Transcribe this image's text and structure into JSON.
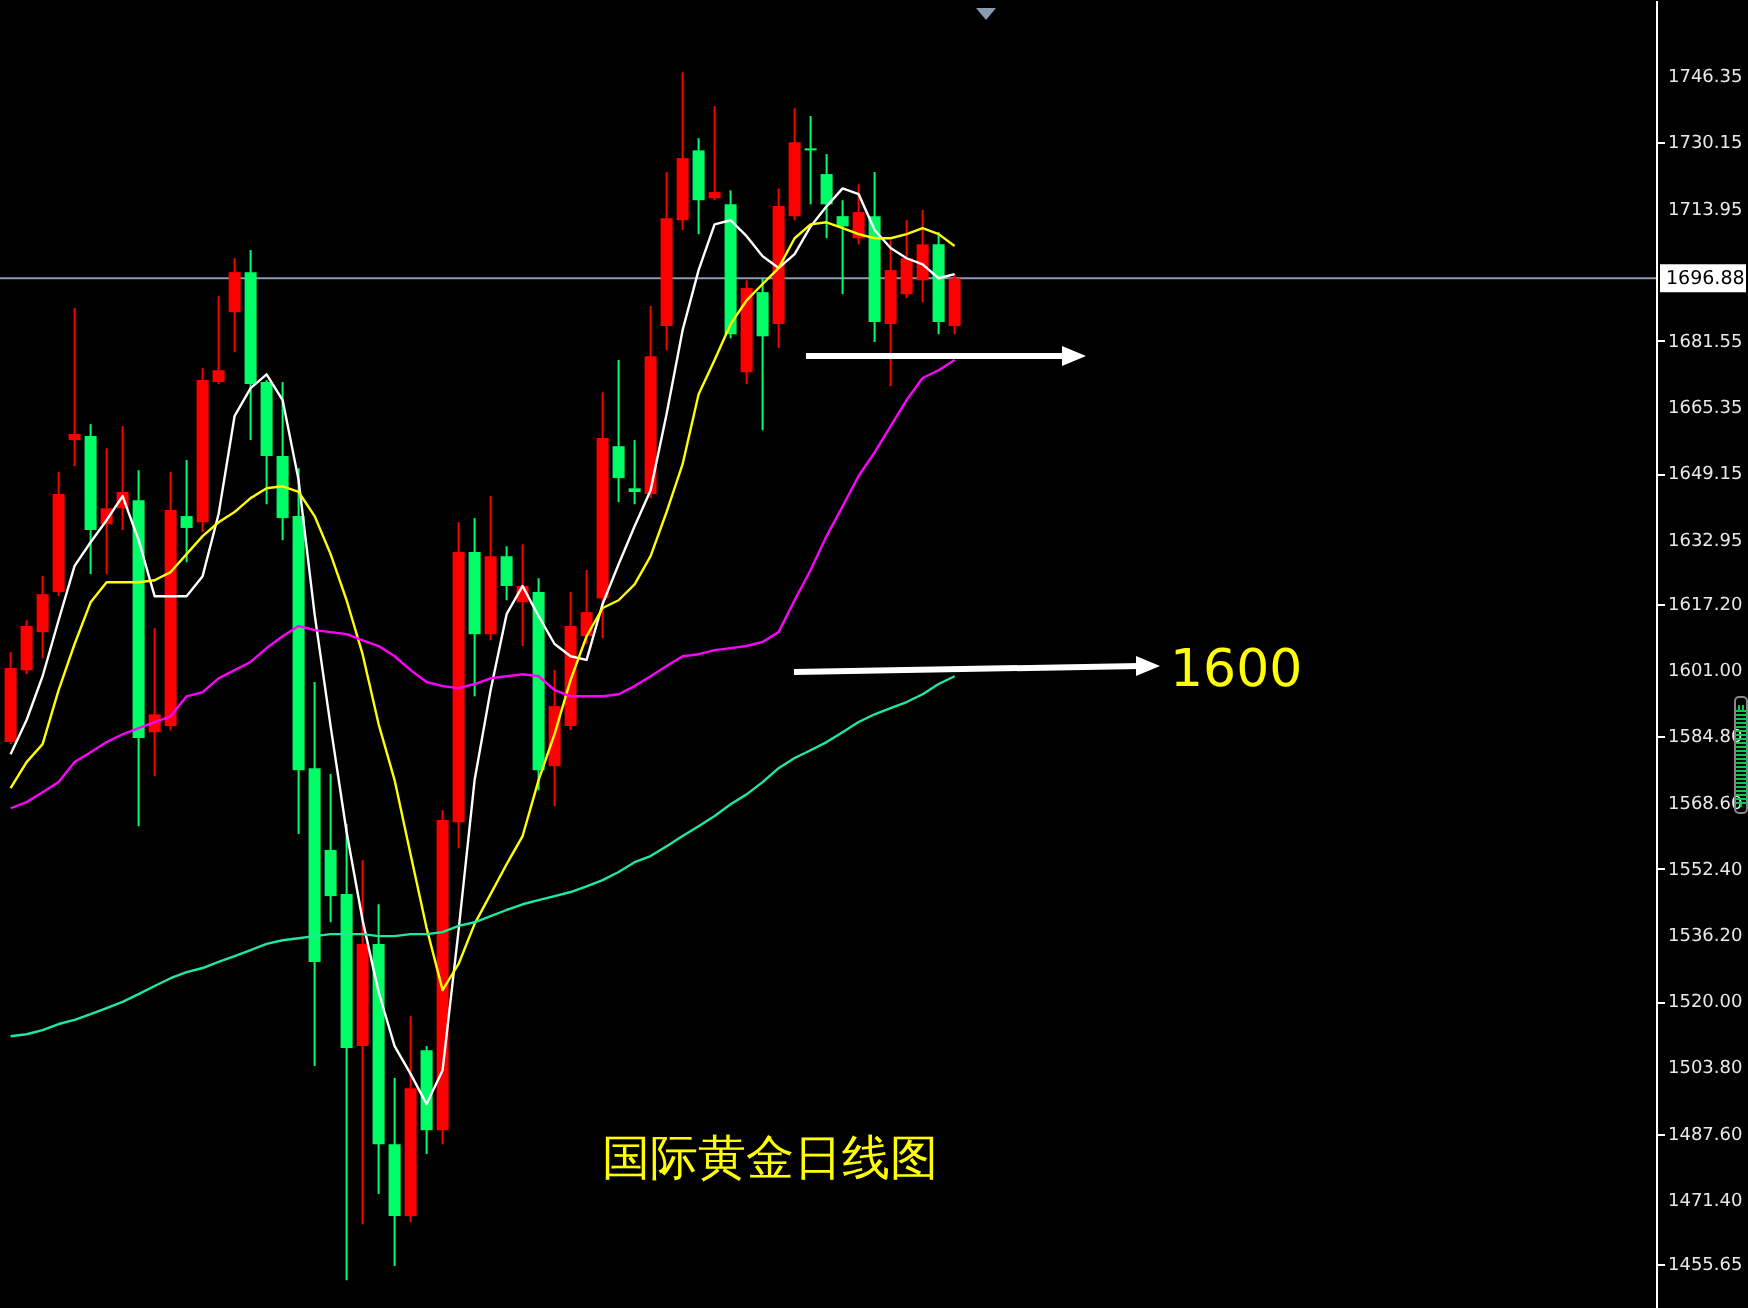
{
  "chart_data": {
    "type": "candlestick",
    "categories": [
      null,
      null,
      null,
      null,
      null,
      null,
      null,
      null,
      null,
      null,
      null,
      null,
      null,
      null,
      null,
      null,
      null,
      null,
      null,
      null,
      null,
      null,
      null,
      null,
      null,
      null,
      null,
      null,
      null,
      null,
      null,
      null,
      null,
      null,
      null,
      null,
      null,
      null,
      null,
      null,
      null,
      null,
      null,
      null,
      null,
      null,
      null,
      null,
      null,
      null,
      null,
      null,
      null,
      null,
      null,
      null,
      null,
      null,
      null,
      null
    ],
    "ohlc": [
      [
        1583.4,
        1605.4,
        1582.9,
        1601.5
      ],
      [
        1601.0,
        1613.2,
        1600.0,
        1611.8
      ],
      [
        1610.3,
        1624.0,
        1603.9,
        1619.6
      ],
      [
        1620.1,
        1649.5,
        1619.1,
        1644.1
      ],
      [
        1657.3,
        1689.6,
        1650.9,
        1658.8
      ],
      [
        1658.3,
        1661.2,
        1624.5,
        1635.3
      ],
      [
        1636.7,
        1655.3,
        1624.5,
        1640.6
      ],
      [
        1640.6,
        1660.7,
        1635.3,
        1644.6
      ],
      [
        1642.6,
        1649.9,
        1562.8,
        1584.4
      ],
      [
        1585.8,
        1611.3,
        1575.1,
        1590.2
      ],
      [
        1587.3,
        1649.5,
        1586.3,
        1640.2
      ],
      [
        1638.7,
        1652.4,
        1627.4,
        1635.8
      ],
      [
        1637.2,
        1674.9,
        1634.8,
        1672.0
      ],
      [
        1671.5,
        1692.5,
        1671.0,
        1674.4
      ],
      [
        1688.6,
        1701.8,
        1678.8,
        1698.4
      ],
      [
        1698.4,
        1703.8,
        1657.3,
        1671.0
      ],
      [
        1671.5,
        1672.0,
        1641.6,
        1653.4
      ],
      [
        1653.4,
        1671.5,
        1632.8,
        1638.2
      ],
      [
        1638.7,
        1650.4,
        1560.9,
        1576.5
      ],
      [
        1577.0,
        1598.1,
        1504.1,
        1529.6
      ],
      [
        1557.0,
        1575.6,
        1539.3,
        1545.7
      ],
      [
        1546.2,
        1563.3,
        1451.7,
        1508.5
      ],
      [
        1509.0,
        1554.5,
        1465.4,
        1534.0
      ],
      [
        1534.0,
        1543.7,
        1472.8,
        1485.0
      ],
      [
        1485.0,
        1501.2,
        1455.2,
        1467.4
      ],
      [
        1467.4,
        1516.3,
        1465.9,
        1498.7
      ],
      [
        1508.0,
        1509.0,
        1482.6,
        1488.4
      ],
      [
        1488.4,
        1566.7,
        1485.0,
        1564.3
      ],
      [
        1563.8,
        1637.2,
        1557.4,
        1629.9
      ],
      [
        1629.9,
        1638.2,
        1594.6,
        1609.8
      ],
      [
        1609.8,
        1643.6,
        1608.3,
        1628.9
      ],
      [
        1628.9,
        1631.3,
        1618.1,
        1621.6
      ],
      [
        1617.6,
        1631.8,
        1606.9,
        1621.6
      ],
      [
        1620.1,
        1623.5,
        1571.6,
        1576.5
      ],
      [
        1577.5,
        1601.0,
        1567.7,
        1592.2
      ],
      [
        1587.3,
        1620.1,
        1586.3,
        1611.8
      ],
      [
        1609.3,
        1625.5,
        1607.4,
        1615.2
      ],
      [
        1618.6,
        1669.0,
        1608.8,
        1657.8
      ],
      [
        1655.8,
        1676.9,
        1642.1,
        1648.0
      ],
      [
        1645.5,
        1657.3,
        1641.6,
        1644.6
      ],
      [
        1644.1,
        1690.1,
        1643.1,
        1677.8
      ],
      [
        1685.2,
        1722.9,
        1679.3,
        1711.6
      ],
      [
        1711.1,
        1747.3,
        1708.7,
        1726.3
      ],
      [
        1728.2,
        1731.2,
        1707.7,
        1716.0
      ],
      [
        1716.5,
        1739.0,
        1716.0,
        1718.0
      ],
      [
        1715.0,
        1718.4,
        1682.2,
        1683.2
      ],
      [
        1673.9,
        1696.4,
        1671.0,
        1694.5
      ],
      [
        1693.5,
        1696.9,
        1659.7,
        1682.7
      ],
      [
        1685.7,
        1718.9,
        1679.8,
        1714.6
      ],
      [
        1712.1,
        1738.5,
        1711.1,
        1730.2
      ],
      [
        1728.7,
        1736.6,
        1715.0,
        1728.2
      ],
      [
        1722.4,
        1727.3,
        1706.7,
        1715.0
      ],
      [
        1712.1,
        1716.0,
        1693.0,
        1709.6
      ],
      [
        1706.7,
        1719.9,
        1705.2,
        1713.1
      ],
      [
        1712.1,
        1722.9,
        1681.3,
        1686.2
      ],
      [
        1685.7,
        1706.2,
        1670.5,
        1698.9
      ],
      [
        1693.0,
        1711.1,
        1692.0,
        1701.8
      ],
      [
        1696.4,
        1713.6,
        1691.0,
        1705.2
      ],
      [
        1705.2,
        1708.2,
        1683.2,
        1686.2
      ],
      [
        1685.2,
        1697.9,
        1683.2,
        1696.9
      ]
    ],
    "colors": [
      "#ff0000",
      "#ff0000",
      "#ff0000",
      "#ff0000",
      "#ff0000",
      "#00ff66",
      "#ff0000",
      "#ff0000",
      "#00ff66",
      "#ff0000",
      "#ff0000",
      "#00ff66",
      "#ff0000",
      "#ff0000",
      "#ff0000",
      "#00ff66",
      "#00ff66",
      "#00ff66",
      "#00ff66",
      "#00ff66",
      "#00ff66",
      "#00ff66",
      "#ff0000",
      "#00ff66",
      "#00ff66",
      "#ff0000",
      "#00ff66",
      "#ff0000",
      "#ff0000",
      "#00ff66",
      "#ff0000",
      "#00ff66",
      "#ff0000",
      "#00ff66",
      "#ff0000",
      "#ff0000",
      "#ff0000",
      "#ff0000",
      "#00ff66",
      "#00ff66",
      "#ff0000",
      "#ff0000",
      "#ff0000",
      "#00ff66",
      "#ff0000",
      "#00ff66",
      "#ff0000",
      "#00ff66",
      "#ff0000",
      "#ff0000",
      "#00ff66",
      "#00ff66",
      "#00ff66",
      "#ff0000",
      "#00ff66",
      "#ff0000",
      "#ff0000",
      "#ff0000",
      "#00ff66",
      "#ff0000"
    ],
    "series": [
      {
        "type": "line",
        "color": "#ffffff",
        "values": [
          1580.4,
          1588.8,
          1599.5,
          1613.2,
          1626.5,
          1632.3,
          1637.7,
          1643.6,
          1632.8,
          1619.1,
          1619.1,
          1619.1,
          1624.0,
          1639.2,
          1663.2,
          1670.0,
          1673.4,
          1667.1,
          1647.5,
          1614.7,
          1587.3,
          1561.4,
          1539.8,
          1522.2,
          1509.0,
          1502.2,
          1494.8,
          1503.1,
          1537.4,
          1574.1,
          1596.1,
          1614.7,
          1621.6,
          1614.2,
          1607.4,
          1604.4,
          1603.5,
          1617.2,
          1626.9,
          1636.2,
          1645.0,
          1663.7,
          1684.2,
          1698.9,
          1710.1,
          1711.1,
          1707.2,
          1702.3,
          1699.4,
          1702.8,
          1709.6,
          1714.5,
          1718.9,
          1717.5,
          1708.7,
          1704.3,
          1701.8,
          1700.3,
          1696.9,
          1697.9
        ]
      },
      {
        "type": "line",
        "color": "#ffff00",
        "values": [
          1572.1,
          1578.5,
          1582.9,
          1596.1,
          1607.4,
          1617.6,
          1622.5,
          1622.5,
          1622.5,
          1623.0,
          1625.0,
          1629.4,
          1633.8,
          1637.2,
          1639.7,
          1643.1,
          1645.5,
          1646.0,
          1644.6,
          1638.7,
          1629.4,
          1618.1,
          1604.9,
          1587.8,
          1574.1,
          1555.9,
          1537.9,
          1522.7,
          1529.1,
          1538.9,
          1546.2,
          1553.5,
          1560.4,
          1574.1,
          1585.4,
          1598.6,
          1609.3,
          1616.2,
          1618.1,
          1622.0,
          1628.9,
          1639.7,
          1651.4,
          1668.5,
          1676.9,
          1685.7,
          1691.5,
          1695.5,
          1699.4,
          1706.7,
          1710.1,
          1710.6,
          1709.2,
          1707.7,
          1706.7,
          1706.7,
          1707.7,
          1709.2,
          1707.7,
          1704.8
        ]
      },
      {
        "type": "line",
        "color": "#ff00ff",
        "values": [
          1567.2,
          1568.7,
          1571.1,
          1573.6,
          1578.5,
          1580.9,
          1583.4,
          1585.3,
          1586.8,
          1588.3,
          1589.7,
          1594.6,
          1595.6,
          1599.0,
          1601.0,
          1603.0,
          1606.4,
          1609.3,
          1611.8,
          1610.8,
          1610.3,
          1609.8,
          1608.3,
          1606.9,
          1604.4,
          1601.0,
          1598.1,
          1597.1,
          1596.6,
          1597.6,
          1599.0,
          1599.5,
          1600.0,
          1599.5,
          1596.1,
          1594.6,
          1594.6,
          1594.6,
          1595.1,
          1597.1,
          1599.5,
          1602.0,
          1604.4,
          1604.9,
          1605.9,
          1606.4,
          1606.9,
          1607.9,
          1610.3,
          1618.1,
          1625.5,
          1633.8,
          1641.1,
          1648.5,
          1654.3,
          1660.7,
          1667.1,
          1672.5,
          1674.4,
          1676.9
        ]
      },
      {
        "type": "line",
        "color": "#20e8a0",
        "values": [
          1511.4,
          1511.9,
          1512.9,
          1514.4,
          1515.4,
          1516.8,
          1518.3,
          1519.8,
          1521.7,
          1523.7,
          1525.6,
          1527.1,
          1528.1,
          1529.6,
          1531.0,
          1532.5,
          1534.0,
          1534.9,
          1535.4,
          1535.9,
          1536.4,
          1536.4,
          1536.4,
          1535.9,
          1535.9,
          1536.4,
          1536.4,
          1536.9,
          1538.4,
          1539.3,
          1540.8,
          1542.3,
          1543.7,
          1544.7,
          1545.7,
          1546.7,
          1548.1,
          1549.6,
          1551.6,
          1554.0,
          1555.5,
          1557.9,
          1560.4,
          1562.8,
          1565.3,
          1568.2,
          1570.6,
          1573.6,
          1577.0,
          1579.5,
          1581.4,
          1583.4,
          1585.8,
          1588.3,
          1590.2,
          1591.7,
          1593.2,
          1595.1,
          1597.6,
          1599.5
        ]
      }
    ],
    "ylim": [
      1444.9,
      1765.0
    ],
    "yticks": [
      1746.35,
      1730.15,
      1713.95,
      1681.55,
      1665.35,
      1649.15,
      1632.95,
      {
        "value": 1617.2,
        "label": "1617.20"
      },
      {
        "value": 1601,
        "label": "1601.00"
      },
      {
        "value": 1584.8,
        "label": "1584.80"
      },
      {
        "value": 1568.6,
        "label": "1568.60"
      },
      {
        "value": 1552.4,
        "label": "1552.40"
      },
      {
        "value": 1536.2,
        "label": "1536.20"
      },
      {
        "value": 1520,
        "label": "1520.00"
      },
      {
        "value": 1503.8,
        "label": "1503.80"
      },
      {
        "value": 1487.6,
        "label": "1487.60"
      },
      {
        "value": 1471.4,
        "label": "1471.40"
      },
      1455.65
    ],
    "ref_lines": [
      {
        "axis": "y",
        "value": 1696.88,
        "label": "1696.88",
        "color": "#8a9bb4"
      }
    ],
    "annotations": [
      "国际黄金日线图",
      "1600"
    ],
    "tick_labels": "y"
  }
}
